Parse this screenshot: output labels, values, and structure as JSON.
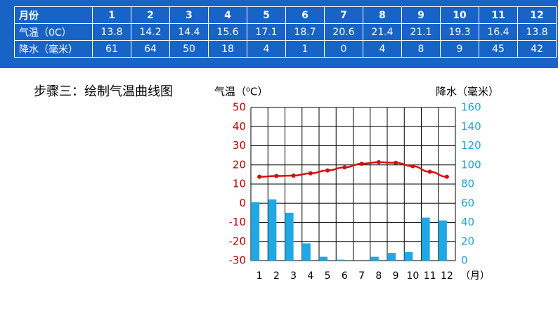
{
  "table": {
    "rows": [
      [
        "月份",
        "1",
        "2",
        "3",
        "4",
        "5",
        "6",
        "7",
        "8",
        "9",
        "10",
        "11",
        "12"
      ],
      [
        "气温（0C）",
        "13.8",
        "14.2",
        "14.4",
        "15.6",
        "17.1",
        "18.7",
        "20.6",
        "21.4",
        "21.1",
        "19.3",
        "16.4",
        "13.8"
      ],
      [
        "降水（毫米）",
        "61",
        "64",
        "50",
        "18",
        "4",
        "1",
        "0",
        "4",
        "8",
        "9",
        "45",
        "42"
      ]
    ]
  },
  "step_title": "步骤三：绘制气温曲线图",
  "chart_data": {
    "type": "climate",
    "y_label": "气温（⁰C）",
    "y2_label": "降水（毫米）",
    "x_unit": "（月）",
    "categories": [
      "1",
      "2",
      "3",
      "4",
      "5",
      "6",
      "7",
      "8",
      "9",
      "10",
      "11",
      "12"
    ],
    "series": [
      {
        "kind": "line",
        "color": "#d40f0f",
        "values": [
          13.8,
          14.2,
          14.4,
          15.6,
          17.1,
          18.7,
          20.6,
          21.4,
          21.1,
          19.3,
          16.4,
          13.8
        ]
      },
      {
        "kind": "bar",
        "axis": "y2",
        "color": "#1fa8e3",
        "values": [
          61,
          64,
          50,
          18,
          4,
          1,
          0,
          4,
          8,
          9,
          45,
          42
        ]
      }
    ],
    "ylim": [
      -30,
      50
    ],
    "yticks": [
      -30,
      -20,
      -10,
      0,
      10,
      20,
      30,
      40,
      50
    ],
    "ytick_color": "#c00000",
    "y2lim": [
      0,
      160
    ],
    "y2ticks": [
      0,
      20,
      40,
      60,
      80,
      100,
      120,
      140,
      160
    ],
    "y2tick_color": "#1aa6d8",
    "grid": true
  }
}
